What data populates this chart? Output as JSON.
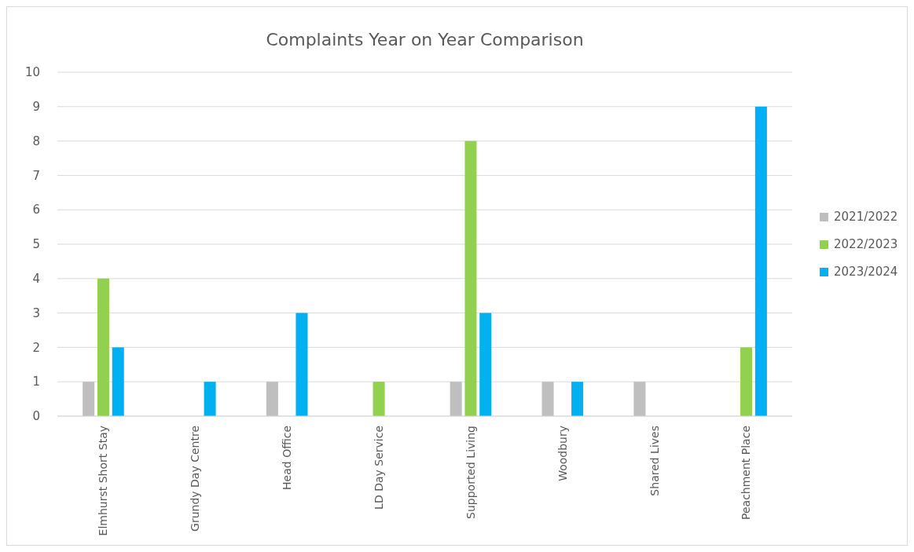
{
  "chart_data": {
    "type": "bar",
    "title": "Complaints Year on Year Comparison",
    "categories": [
      "Elmhurst Short Stay",
      "Grundy Day Centre",
      "Head Office",
      "LD Day Service",
      "Supported Living",
      "Woodbury",
      "Shared Lives",
      "Peachment Place"
    ],
    "series": [
      {
        "name": "2021/2022",
        "color": "#bfbfbf",
        "values": [
          1,
          0,
          1,
          0,
          1,
          1,
          1,
          0
        ]
      },
      {
        "name": "2022/2023",
        "color": "#92d050",
        "values": [
          4,
          0,
          0,
          1,
          8,
          0,
          0,
          2
        ]
      },
      {
        "name": "2023/2024",
        "color": "#00b0f0",
        "values": [
          2,
          1,
          3,
          0,
          3,
          1,
          0,
          9
        ]
      }
    ],
    "ylim": [
      0,
      10
    ],
    "yticks": [
      0,
      1,
      2,
      3,
      4,
      5,
      6,
      7,
      8,
      9,
      10
    ],
    "grid": "y",
    "legend": "right"
  }
}
